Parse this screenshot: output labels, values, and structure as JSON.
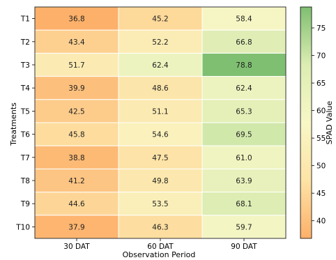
{
  "chart_data": {
    "type": "heatmap",
    "xlabel": "Observation Period",
    "ylabel": "Treatments",
    "colorbar_label": "SPAD Value",
    "x": [
      "30 DAT",
      "60 DAT",
      "90 DAT"
    ],
    "y": [
      "T1",
      "T2",
      "T3",
      "T4",
      "T5",
      "T6",
      "T7",
      "T8",
      "T9",
      "T10"
    ],
    "values": [
      [
        36.8,
        45.2,
        58.4
      ],
      [
        43.4,
        52.2,
        66.8
      ],
      [
        51.7,
        62.4,
        78.8
      ],
      [
        39.9,
        48.6,
        62.4
      ],
      [
        42.5,
        51.1,
        65.3
      ],
      [
        45.8,
        54.6,
        69.5
      ],
      [
        38.8,
        47.5,
        61.0
      ],
      [
        41.2,
        49.8,
        63.9
      ],
      [
        44.6,
        53.5,
        68.1
      ],
      [
        37.9,
        46.3,
        59.7
      ]
    ],
    "value_labels": [
      [
        "36.8",
        "45.2",
        "58.4"
      ],
      [
        "43.4",
        "52.2",
        "66.8"
      ],
      [
        "51.7",
        "62.4",
        "78.8"
      ],
      [
        "39.9",
        "48.6",
        "62.4"
      ],
      [
        "42.5",
        "51.1",
        "65.3"
      ],
      [
        "45.8",
        "54.6",
        "69.5"
      ],
      [
        "38.8",
        "47.5",
        "61.0"
      ],
      [
        "41.2",
        "49.8",
        "63.9"
      ],
      [
        "44.6",
        "53.5",
        "68.1"
      ],
      [
        "37.9",
        "46.3",
        "59.7"
      ]
    ],
    "colorbar": {
      "vmin": 36.8,
      "vmax": 78.8,
      "ticks": [
        40,
        45,
        50,
        55,
        60,
        65,
        70,
        75
      ],
      "colormap": [
        "#fdb06a",
        "#fde3a6",
        "#f8f7c6",
        "#dcedb3",
        "#7fbf71"
      ]
    }
  }
}
